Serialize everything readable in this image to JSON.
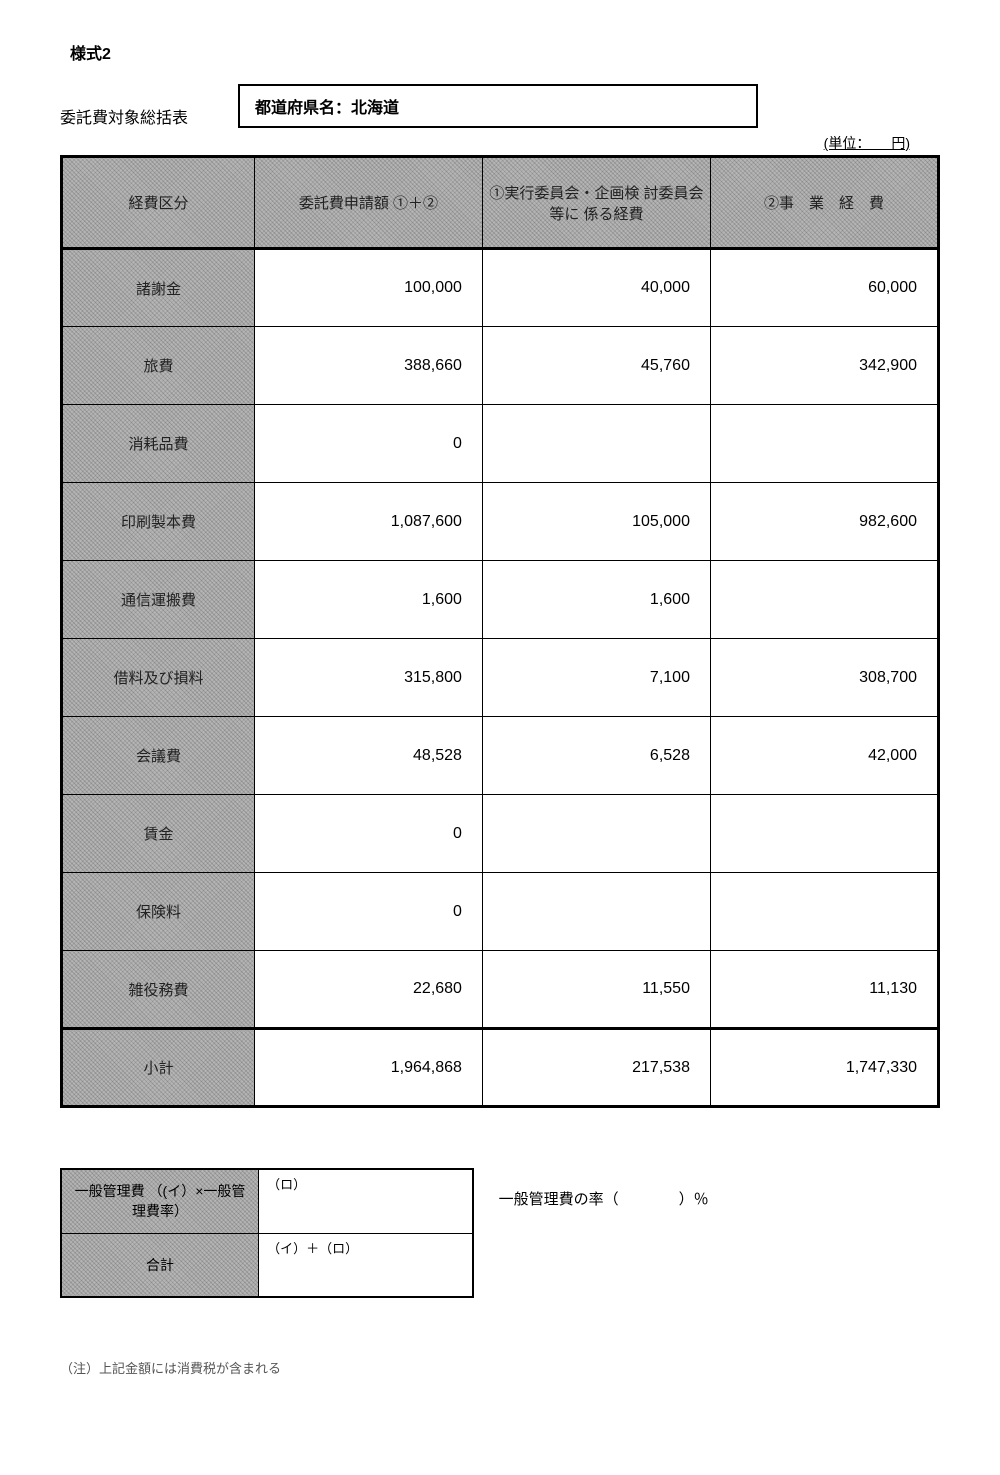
{
  "form_number": "様式2",
  "title": "委託費対象総括表",
  "prefecture_label": "都道府県名：",
  "prefecture_value": "北海道",
  "unit_label": "(単位：　　円)",
  "columns": {
    "c0": "経費区分",
    "c1": "委託費申請額\n①＋②",
    "c2": "①実行委員会・企画検\n討委員会等に\n係る経費",
    "c3": "②事　業　経　費"
  },
  "rows": [
    {
      "label": "諸謝金",
      "v1": "100,000",
      "v2": "40,000",
      "v3": "60,000"
    },
    {
      "label": "旅費",
      "v1": "388,660",
      "v2": "45,760",
      "v3": "342,900"
    },
    {
      "label": "消耗品費",
      "v1": "0",
      "v2": "",
      "v3": ""
    },
    {
      "label": "印刷製本費",
      "v1": "1,087,600",
      "v2": "105,000",
      "v3": "982,600"
    },
    {
      "label": "通信運搬費",
      "v1": "1,600",
      "v2": "1,600",
      "v3": ""
    },
    {
      "label": "借料及び損料",
      "v1": "315,800",
      "v2": "7,100",
      "v3": "308,700"
    },
    {
      "label": "会議費",
      "v1": "48,528",
      "v2": "6,528",
      "v3": "42,000"
    },
    {
      "label": "賃金",
      "v1": "0",
      "v2": "",
      "v3": ""
    },
    {
      "label": "保険料",
      "v1": "0",
      "v2": "",
      "v3": ""
    },
    {
      "label": "雑役務費",
      "v1": "22,680",
      "v2": "11,550",
      "v3": "11,130"
    }
  ],
  "subtotal": {
    "label": "小計",
    "v1": "1,964,868",
    "v2": "217,538",
    "v3": "1,747,330"
  },
  "second_table": {
    "r1_label": "一般管理費\n（(イ）×一般管理費率）",
    "r1_val": "（ロ）",
    "r2_label": "合計",
    "r2_val": "（イ）＋（ロ）"
  },
  "rate_text": "一般管理費の率（　　　　）％",
  "note_text": "（注）上記金額には消費税が含まれる"
}
